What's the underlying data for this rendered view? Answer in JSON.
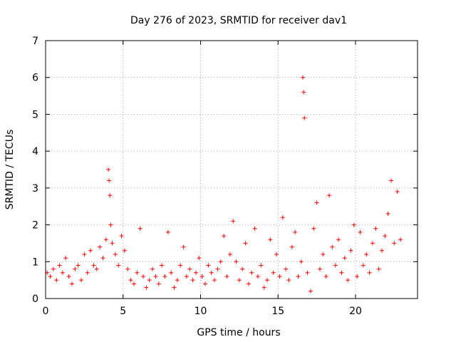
{
  "chart_data": {
    "type": "scatter",
    "title": "Day 276 of 2023, SRMTID for receiver dav1",
    "xlabel": "GPS time / hours",
    "ylabel": "SRMTID / TECUs",
    "xlim": [
      0,
      24
    ],
    "ylim": [
      0,
      7
    ],
    "xticks": [
      0,
      5,
      10,
      15,
      20
    ],
    "yticks": [
      0,
      1,
      2,
      3,
      4,
      5,
      6,
      7
    ],
    "grid": true,
    "marker": "plus",
    "color": "#ff0000",
    "series": [
      {
        "name": "dav1",
        "x": [
          0.1,
          0.3,
          0.5,
          0.7,
          0.9,
          1.1,
          1.3,
          1.5,
          1.7,
          1.9,
          2.1,
          2.3,
          2.5,
          2.7,
          2.9,
          3.1,
          3.3,
          3.5,
          3.7,
          3.9,
          4.05,
          4.1,
          4.15,
          4.2,
          4.3,
          4.5,
          4.7,
          4.9,
          5.1,
          5.3,
          5.5,
          5.7,
          5.9,
          6.1,
          6.3,
          6.5,
          6.7,
          6.9,
          7.1,
          7.3,
          7.5,
          7.7,
          7.9,
          8.1,
          8.3,
          8.5,
          8.7,
          8.9,
          9.1,
          9.3,
          9.5,
          9.7,
          9.9,
          10.1,
          10.3,
          10.5,
          10.7,
          10.9,
          11.1,
          11.3,
          11.5,
          11.7,
          11.9,
          12.1,
          12.3,
          12.5,
          12.7,
          12.9,
          13.1,
          13.3,
          13.5,
          13.7,
          13.9,
          14.1,
          14.3,
          14.5,
          14.7,
          14.9,
          15.1,
          15.3,
          15.5,
          15.7,
          15.9,
          16.1,
          16.3,
          16.5,
          16.6,
          16.65,
          16.7,
          16.9,
          17.1,
          17.3,
          17.5,
          17.7,
          17.9,
          18.1,
          18.3,
          18.5,
          18.7,
          18.9,
          19.1,
          19.3,
          19.5,
          19.7,
          19.9,
          20.1,
          20.3,
          20.5,
          20.7,
          20.9,
          21.1,
          21.3,
          21.5,
          21.7,
          21.9,
          22.1,
          22.3,
          22.5,
          22.7,
          22.9
        ],
        "y": [
          0.7,
          0.6,
          0.8,
          0.5,
          0.9,
          0.7,
          1.1,
          0.6,
          0.4,
          0.8,
          0.9,
          0.5,
          1.2,
          0.7,
          1.3,
          0.9,
          0.8,
          1.4,
          1.1,
          1.6,
          3.5,
          3.2,
          2.8,
          2.0,
          1.5,
          1.2,
          0.9,
          1.7,
          1.3,
          0.8,
          0.5,
          0.4,
          0.7,
          1.9,
          0.6,
          0.3,
          0.5,
          0.8,
          0.6,
          0.4,
          0.9,
          0.6,
          1.8,
          0.7,
          0.3,
          0.5,
          0.9,
          1.4,
          0.6,
          0.8,
          0.5,
          0.7,
          1.1,
          0.6,
          0.4,
          0.9,
          0.7,
          0.5,
          0.8,
          1.0,
          1.7,
          0.6,
          1.2,
          2.1,
          1.0,
          0.5,
          0.8,
          1.5,
          0.4,
          0.7,
          1.9,
          0.6,
          0.9,
          0.3,
          0.5,
          1.6,
          0.7,
          1.2,
          0.6,
          2.2,
          0.8,
          0.5,
          1.4,
          1.8,
          0.6,
          1.0,
          6.0,
          5.6,
          4.9,
          0.7,
          0.2,
          1.9,
          2.6,
          0.8,
          1.2,
          0.6,
          2.8,
          1.4,
          0.9,
          1.6,
          0.7,
          1.1,
          0.5,
          1.3,
          2.0,
          0.6,
          1.8,
          0.9,
          1.2,
          0.7,
          1.5,
          1.9,
          0.8,
          1.3,
          1.7,
          2.3,
          3.2,
          1.5,
          2.9,
          1.6
        ]
      }
    ]
  }
}
